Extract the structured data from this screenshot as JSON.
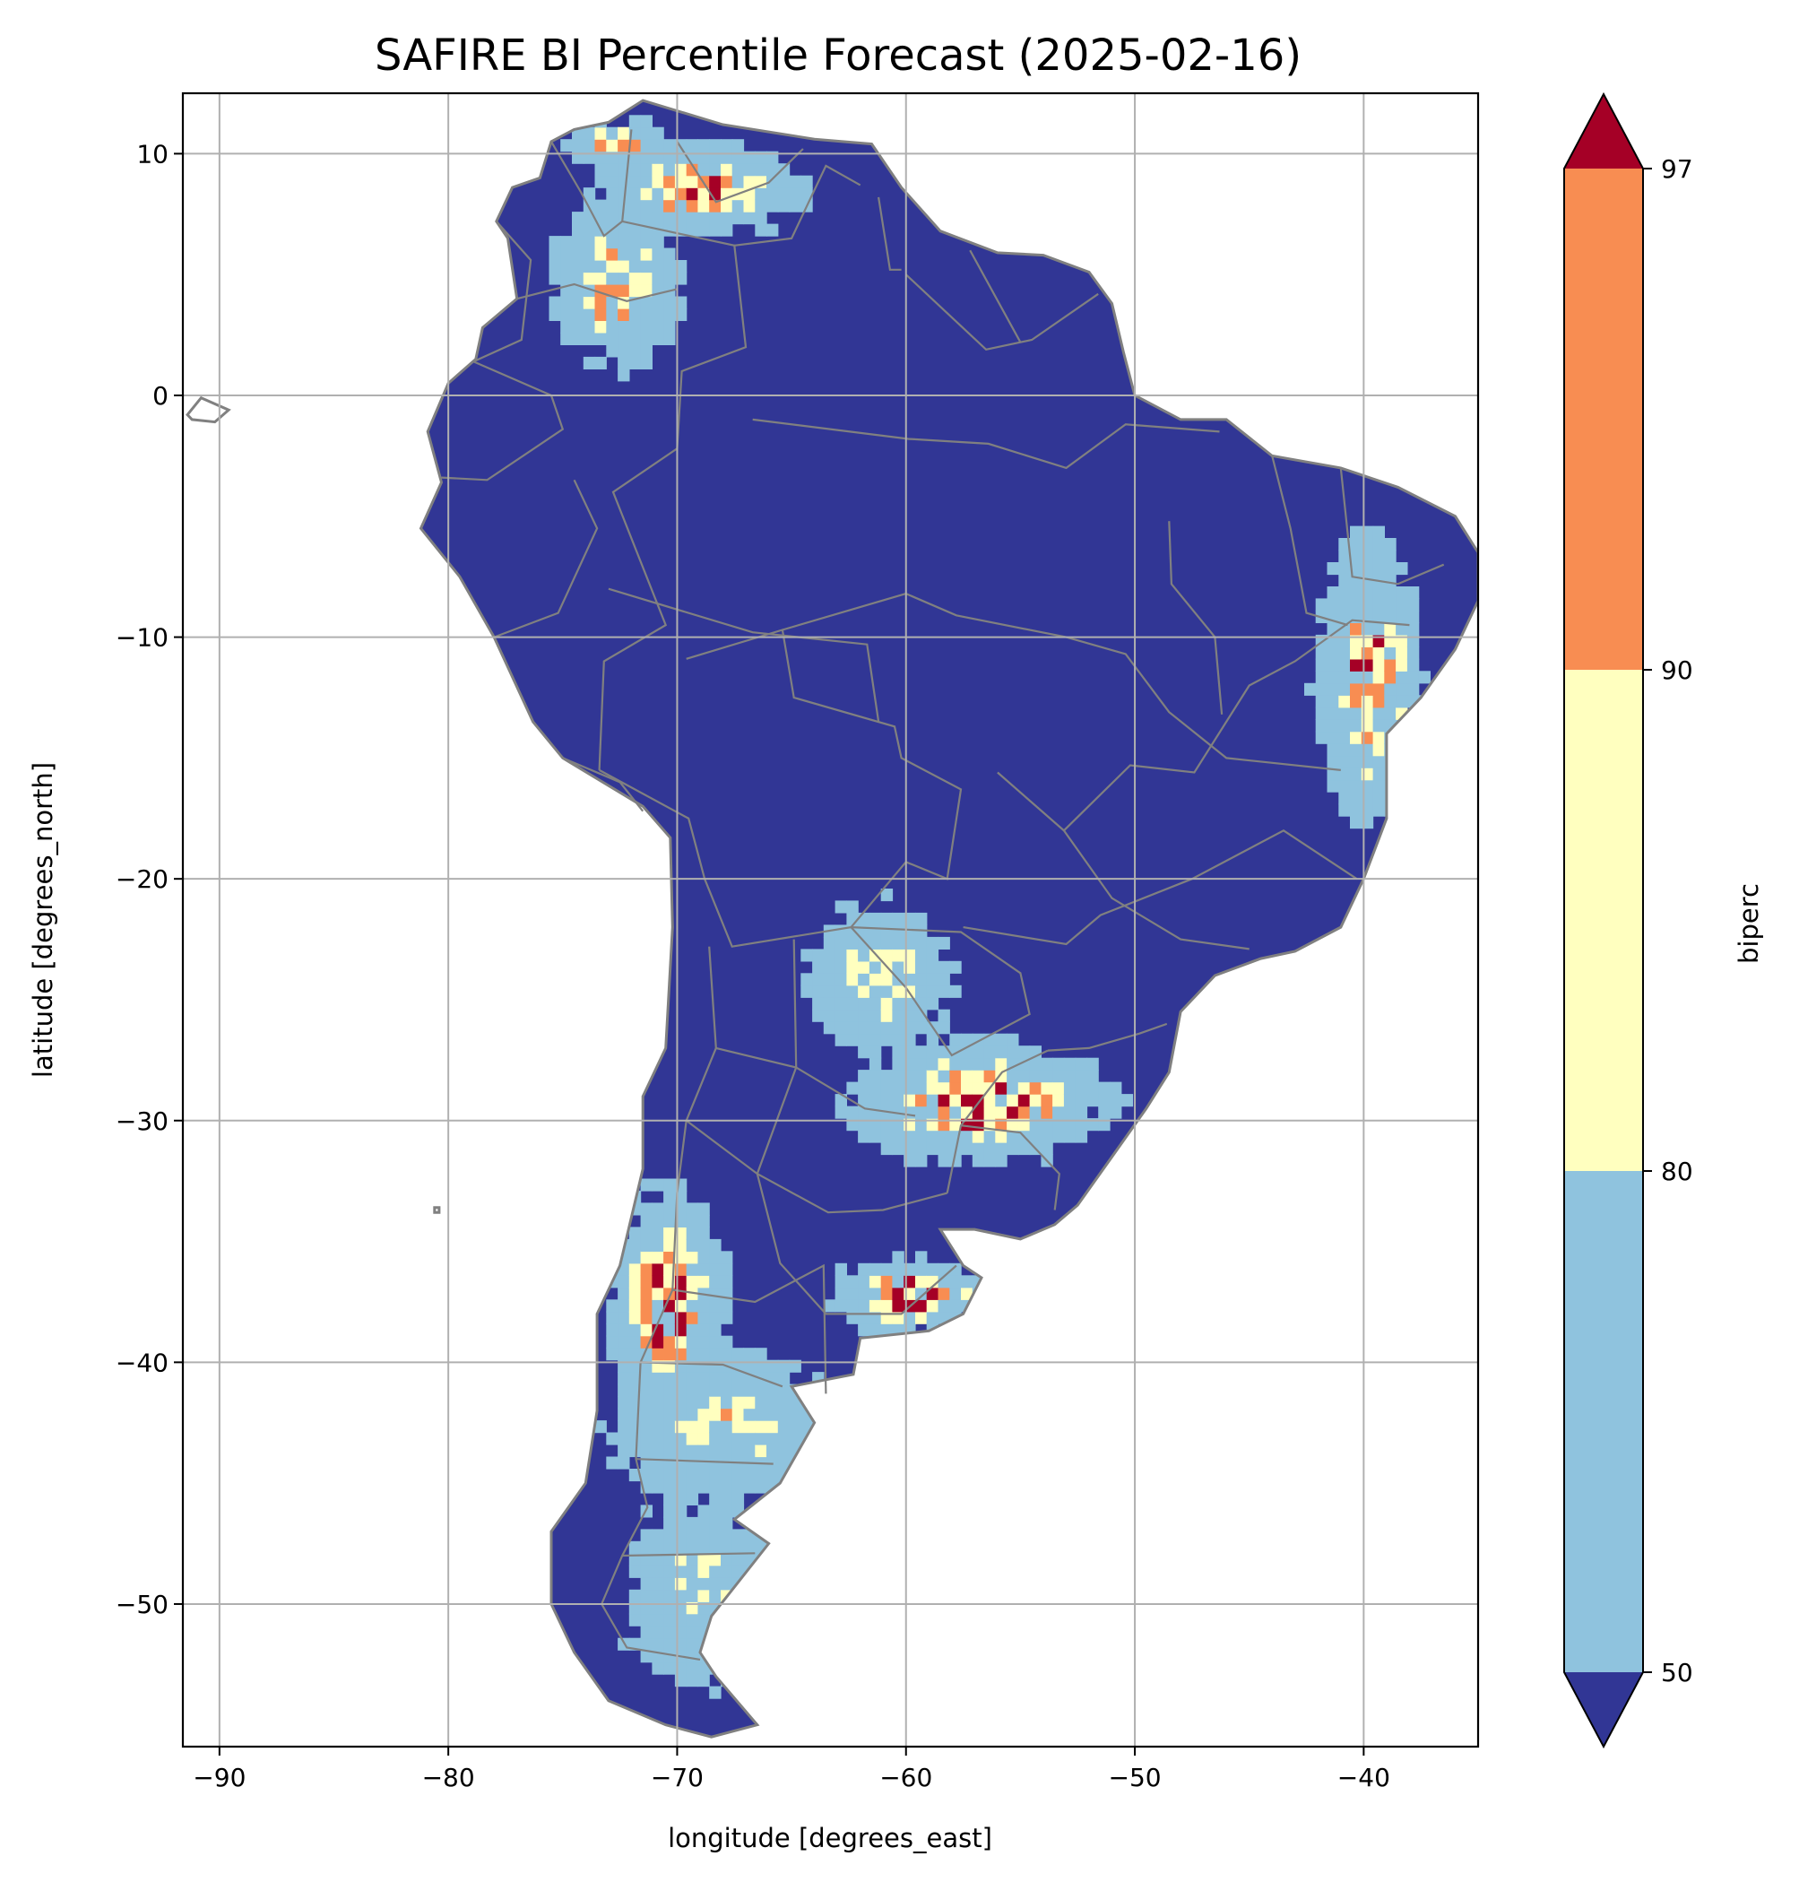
{
  "title": "SAFIRE BI Percentile Forecast (2025-02-16)",
  "map": {
    "xlabel": "longitude [degrees_east]",
    "ylabel": "latitude [degrees_north]",
    "lon_range": [
      -91.6,
      -35.0
    ],
    "lat_range": [
      -55.9,
      12.5
    ],
    "grid": true,
    "x_ticks": [
      -90,
      -80,
      -70,
      -60,
      -50,
      -40
    ],
    "x_tick_labels": [
      "−90",
      "−80",
      "−70",
      "−60",
      "−50",
      "−40"
    ],
    "y_ticks": [
      10,
      0,
      -10,
      -20,
      -30,
      -40,
      -50
    ],
    "y_tick_labels": [
      "10",
      "0",
      "−10",
      "−20",
      "−30",
      "−40",
      "−50"
    ],
    "ocean_color": "#ffffff",
    "boundary_color": "#808080",
    "land_outline": [
      [
        -71.5,
        12.2
      ],
      [
        -68,
        11.2
      ],
      [
        -64,
        10.6
      ],
      [
        -61.5,
        10.4
      ],
      [
        -60.2,
        8.6
      ],
      [
        -58.5,
        6.8
      ],
      [
        -56,
        5.9
      ],
      [
        -54,
        5.8
      ],
      [
        -52,
        5.1
      ],
      [
        -51,
        3.8
      ],
      [
        -50.5,
        1.8
      ],
      [
        -50,
        0
      ],
      [
        -48,
        -1
      ],
      [
        -46,
        -1
      ],
      [
        -44,
        -2.5
      ],
      [
        -41,
        -3
      ],
      [
        -38.5,
        -3.8
      ],
      [
        -36,
        -5
      ],
      [
        -35,
        -6.5
      ],
      [
        -35,
        -8.5
      ],
      [
        -36,
        -10.5
      ],
      [
        -37.5,
        -12.5
      ],
      [
        -39,
        -14
      ],
      [
        -39,
        -17.5
      ],
      [
        -40,
        -20
      ],
      [
        -41,
        -22
      ],
      [
        -43,
        -23
      ],
      [
        -44.5,
        -23.3
      ],
      [
        -46.5,
        -24
      ],
      [
        -48,
        -25.5
      ],
      [
        -48.5,
        -28
      ],
      [
        -49.5,
        -29.5
      ],
      [
        -51,
        -31.5
      ],
      [
        -52.5,
        -33.5
      ],
      [
        -53.5,
        -34.3
      ],
      [
        -55,
        -34.9
      ],
      [
        -57,
        -34.5
      ],
      [
        -58.5,
        -34.5
      ],
      [
        -57.5,
        -36
      ],
      [
        -56.7,
        -36.5
      ],
      [
        -57.5,
        -38
      ],
      [
        -59,
        -38.7
      ],
      [
        -62,
        -39
      ],
      [
        -62.3,
        -40.5
      ],
      [
        -65,
        -41
      ],
      [
        -64,
        -42.5
      ],
      [
        -65.5,
        -45
      ],
      [
        -67.5,
        -46.5
      ],
      [
        -66,
        -47.5
      ],
      [
        -68.5,
        -50.5
      ],
      [
        -69,
        -52
      ],
      [
        -68.3,
        -53
      ],
      [
        -66.5,
        -55
      ],
      [
        -68.5,
        -55.5
      ],
      [
        -70.5,
        -55
      ],
      [
        -73,
        -54
      ],
      [
        -74.5,
        -52
      ],
      [
        -75.5,
        -50
      ],
      [
        -75.5,
        -47
      ],
      [
        -74,
        -45
      ],
      [
        -73.5,
        -42
      ],
      [
        -73.5,
        -38
      ],
      [
        -72.5,
        -36
      ],
      [
        -71.5,
        -32
      ],
      [
        -71.5,
        -29
      ],
      [
        -70.5,
        -27
      ],
      [
        -70.2,
        -22
      ],
      [
        -70.3,
        -18.3
      ],
      [
        -71.5,
        -17
      ],
      [
        -75,
        -15
      ],
      [
        -76.3,
        -13.5
      ],
      [
        -78,
        -10
      ],
      [
        -79.5,
        -7.5
      ],
      [
        -81.2,
        -5.5
      ],
      [
        -80.3,
        -3.6
      ],
      [
        -80.9,
        -1.5
      ],
      [
        -80,
        0.5
      ],
      [
        -78.8,
        1.5
      ],
      [
        -78.5,
        2.8
      ],
      [
        -77,
        4
      ],
      [
        -77.4,
        6.5
      ],
      [
        -77.9,
        7.2
      ],
      [
        -77.2,
        8.6
      ],
      [
        -76,
        9
      ],
      [
        -75.5,
        10.5
      ],
      [
        -74.5,
        11
      ],
      [
        -73,
        11.3
      ]
    ],
    "islands": [
      [
        [
          -91.4,
          -0.8
        ],
        [
          -90.8,
          -0.1
        ],
        [
          -89.6,
          -0.6
        ],
        [
          -90.2,
          -1.1
        ],
        [
          -91.2,
          -1.0
        ]
      ],
      [
        [
          -80.6,
          -33.6
        ],
        [
          -80.4,
          -33.6
        ],
        [
          -80.4,
          -33.8
        ],
        [
          -80.6,
          -33.8
        ]
      ]
    ],
    "internal_boundaries": [
      [
        [
          -73.4,
          -15.5
        ],
        [
          -73.2,
          -11
        ],
        [
          -70.5,
          -9.5
        ],
        [
          -72.8,
          -4
        ],
        [
          -70,
          -2.2
        ],
        [
          -69.8,
          1
        ],
        [
          -67,
          2
        ],
        [
          -67.5,
          6.2
        ],
        [
          -72.4,
          7.2
        ],
        [
          -72,
          11
        ]
      ],
      [
        [
          -78.9,
          1.4
        ],
        [
          -75.5,
          0
        ],
        [
          -75,
          -1.4
        ],
        [
          -78.3,
          -3.5
        ],
        [
          -80.3,
          -3.4
        ]
      ],
      [
        [
          -73.4,
          -15.5
        ],
        [
          -69.5,
          -17.5
        ],
        [
          -68.8,
          -20
        ],
        [
          -67.6,
          -22.8
        ],
        [
          -62.4,
          -22
        ],
        [
          -60,
          -19.3
        ],
        [
          -58.2,
          -20
        ],
        [
          -57.6,
          -16.3
        ],
        [
          -60.2,
          -15
        ],
        [
          -60.5,
          -13.7
        ],
        [
          -64.9,
          -12.5
        ],
        [
          -65.4,
          -9.7
        ],
        [
          -69.6,
          -10.9
        ]
      ],
      [
        [
          -68.6,
          -22.8
        ],
        [
          -68.3,
          -27
        ],
        [
          -69.6,
          -30
        ],
        [
          -70,
          -33
        ],
        [
          -70.2,
          -37
        ],
        [
          -71.6,
          -40
        ],
        [
          -71.8,
          -44
        ],
        [
          -71.3,
          -46
        ],
        [
          -72.4,
          -48
        ],
        [
          -73.3,
          -50
        ],
        [
          -72.2,
          -51.8
        ],
        [
          -69,
          -52.3
        ]
      ],
      [
        [
          -62.4,
          -22
        ],
        [
          -57.6,
          -22.2
        ],
        [
          -55,
          -23.9
        ],
        [
          -54.6,
          -25.6
        ],
        [
          -58,
          -27.3
        ],
        [
          -60,
          -24.5
        ],
        [
          -62.4,
          -22
        ]
      ],
      [
        [
          -57.6,
          -30.2
        ],
        [
          -55,
          -30.5
        ],
        [
          -53.3,
          -32.2
        ],
        [
          -53.5,
          -33.7
        ]
      ],
      [
        [
          -58.2,
          -33
        ],
        [
          -57.6,
          -30.2
        ],
        [
          -55.8,
          -28
        ],
        [
          -53.8,
          -27.1
        ]
      ],
      [
        [
          -60,
          5
        ],
        [
          -56.5,
          1.9
        ],
        [
          -54.5,
          2.3
        ],
        [
          -51.6,
          4.2
        ]
      ],
      [
        [
          -57.2,
          6
        ],
        [
          -55,
          2.2
        ]
      ],
      [
        [
          -61.2,
          8.2
        ],
        [
          -60.7,
          5.2
        ],
        [
          -60.2,
          5.2
        ]
      ],
      [
        [
          -65.4,
          -9.7
        ],
        [
          -60,
          -8.2
        ],
        [
          -57.8,
          -9.1
        ],
        [
          -53,
          -10
        ],
        [
          -50.4,
          -10.7
        ],
        [
          -48.5,
          -13.1
        ],
        [
          -46,
          -15
        ],
        [
          -41,
          -15.5
        ]
      ],
      [
        [
          -66.7,
          -1
        ],
        [
          -59.9,
          -1.8
        ],
        [
          -56.4,
          -2
        ],
        [
          -53,
          -3
        ],
        [
          -50.4,
          -1.2
        ],
        [
          -46.3,
          -1.5
        ]
      ],
      [
        [
          -73,
          -8
        ],
        [
          -66.7,
          -9.8
        ],
        [
          -61.7,
          -10.3
        ],
        [
          -61.2,
          -13.5
        ]
      ],
      [
        [
          -56,
          -15.6
        ],
        [
          -53.1,
          -18
        ],
        [
          -51,
          -20.8
        ],
        [
          -48,
          -22.5
        ],
        [
          -45,
          -22.9
        ]
      ],
      [
        [
          -57.5,
          -22
        ],
        [
          -53,
          -22.7
        ],
        [
          -51.5,
          -21.5
        ],
        [
          -47.5,
          -20
        ],
        [
          -43.5,
          -18
        ],
        [
          -40.3,
          -20
        ]
      ],
      [
        [
          -53.1,
          -18
        ],
        [
          -50.2,
          -15.3
        ],
        [
          -47.4,
          -15.6
        ],
        [
          -45,
          -12
        ],
        [
          -43,
          -11
        ],
        [
          -40.5,
          -9.3
        ],
        [
          -38,
          -9.5
        ]
      ],
      [
        [
          -48.5,
          -5.2
        ],
        [
          -48.4,
          -7.8
        ],
        [
          -46.5,
          -10
        ],
        [
          -46.2,
          -13.2
        ]
      ],
      [
        [
          -44,
          -2.5
        ],
        [
          -43.2,
          -5.5
        ],
        [
          -42.5,
          -9
        ],
        [
          -40.7,
          -9.5
        ]
      ],
      [
        [
          -41,
          -3
        ],
        [
          -40.5,
          -7.5
        ],
        [
          -38.5,
          -7.8
        ],
        [
          -36.5,
          -7
        ]
      ],
      [
        [
          -53.8,
          -27.1
        ],
        [
          -52,
          -27
        ],
        [
          -49.8,
          -26.4
        ],
        [
          -48.6,
          -26
        ]
      ],
      [
        [
          -64.9,
          -22.5
        ],
        [
          -64.8,
          -27.8
        ],
        [
          -66.5,
          -32.2
        ],
        [
          -65.5,
          -35.9
        ],
        [
          -63.5,
          -38
        ],
        [
          -60.2,
          -38
        ],
        [
          -57.8,
          -36
        ]
      ],
      [
        [
          -68.3,
          -27
        ],
        [
          -64.8,
          -27.8
        ],
        [
          -61.8,
          -29.5
        ],
        [
          -59.6,
          -29.8
        ]
      ],
      [
        [
          -69.6,
          -30
        ],
        [
          -66.5,
          -32.2
        ],
        [
          -63.4,
          -33.8
        ],
        [
          -61,
          -33.7
        ],
        [
          -58.2,
          -33
        ]
      ],
      [
        [
          -70.2,
          -37
        ],
        [
          -66.6,
          -37.5
        ],
        [
          -63.6,
          -36
        ],
        [
          -63.5,
          -41.3
        ]
      ],
      [
        [
          -71.6,
          -40
        ],
        [
          -68,
          -40.1
        ],
        [
          -65.4,
          -41
        ]
      ],
      [
        [
          -71.8,
          -44
        ],
        [
          -65.8,
          -44.2
        ]
      ],
      [
        [
          -72.4,
          -48
        ],
        [
          -66.6,
          -47.9
        ]
      ],
      [
        [
          -75,
          -15
        ],
        [
          -72.5,
          -16
        ],
        [
          -71.5,
          -17.2
        ]
      ],
      [
        [
          -78,
          -10
        ],
        [
          -75.2,
          -9
        ],
        [
          -73.5,
          -5.5
        ],
        [
          -74.5,
          -3.5
        ]
      ],
      [
        [
          -77,
          4
        ],
        [
          -74.5,
          4.6
        ],
        [
          -72.2,
          3.9
        ],
        [
          -70,
          4.4
        ]
      ],
      [
        [
          -75.5,
          10.5
        ],
        [
          -74.2,
          8.4
        ],
        [
          -73.2,
          6.6
        ],
        [
          -72.4,
          7.2
        ]
      ],
      [
        [
          -67.5,
          6.2
        ],
        [
          -65,
          6.5
        ],
        [
          -63.5,
          9.5
        ],
        [
          -62,
          8.7
        ]
      ],
      [
        [
          -70,
          10.5
        ],
        [
          -68.3,
          8
        ],
        [
          -66,
          8.8
        ],
        [
          -64.5,
          10.2
        ]
      ],
      [
        [
          -77.9,
          7.2
        ],
        [
          -76.4,
          5.6
        ],
        [
          -76.8,
          2.3
        ],
        [
          -78.9,
          1.4
        ]
      ]
    ]
  },
  "hatch": {
    "classes": [
      {
        "max": 50,
        "color": "#313695"
      },
      {
        "max": 80,
        "color": "#8fc3de"
      },
      {
        "max": 90,
        "color": "#ffffbf"
      },
      {
        "max": 97,
        "color": "#f88d52"
      },
      {
        "max": 100,
        "color": "#a50026"
      }
    ],
    "hotspots": [
      {
        "name": "venezuela-north",
        "lon": -68.8,
        "lat": 8.6,
        "rx": 4.6,
        "ry": 1.9,
        "peak": 99
      },
      {
        "name": "venezuela-coast",
        "lon": -72.5,
        "lat": 10.4,
        "rx": 2.3,
        "ry": 1.0,
        "peak": 95
      },
      {
        "name": "colombia-andes",
        "lon": -72.6,
        "lat": 4.6,
        "rx": 3.0,
        "ry": 3.6,
        "peak": 93
      },
      {
        "name": "brazil-east-coast",
        "lon": -39.8,
        "lat": -11.5,
        "rx": 2.3,
        "ry": 6.2,
        "peak": 97
      },
      {
        "name": "paraguay-chaco",
        "lon": -61.2,
        "lat": -24.2,
        "rx": 3.6,
        "ry": 3.6,
        "peak": 86
      },
      {
        "name": "mesopotamia",
        "lon": -56.8,
        "lat": -29.2,
        "rx": 5.8,
        "ry": 2.6,
        "peak": 100
      },
      {
        "name": "buenos-aires",
        "lon": -59.8,
        "lat": -37.2,
        "rx": 3.6,
        "ry": 1.6,
        "peak": 100
      },
      {
        "name": "central-chile-andes",
        "lon": -70.4,
        "lat": -37.6,
        "rx": 2.6,
        "ry": 4.8,
        "peak": 99
      },
      {
        "name": "patagonia-north",
        "lon": -68.0,
        "lat": -42.8,
        "rx": 5.4,
        "ry": 3.6,
        "peak": 87
      },
      {
        "name": "patagonia-south",
        "lon": -69.2,
        "lat": -49.5,
        "rx": 3.6,
        "ry": 4.6,
        "peak": 84
      }
    ]
  },
  "colorbar": {
    "label": "biperc",
    "levels": [
      50,
      80,
      90,
      97
    ],
    "tick_labels": [
      "50",
      "80",
      "90",
      "97"
    ],
    "colors": [
      "#313695",
      "#8fc3de",
      "#ffffbf",
      "#f88d52",
      "#a50026"
    ],
    "extend": "both"
  }
}
